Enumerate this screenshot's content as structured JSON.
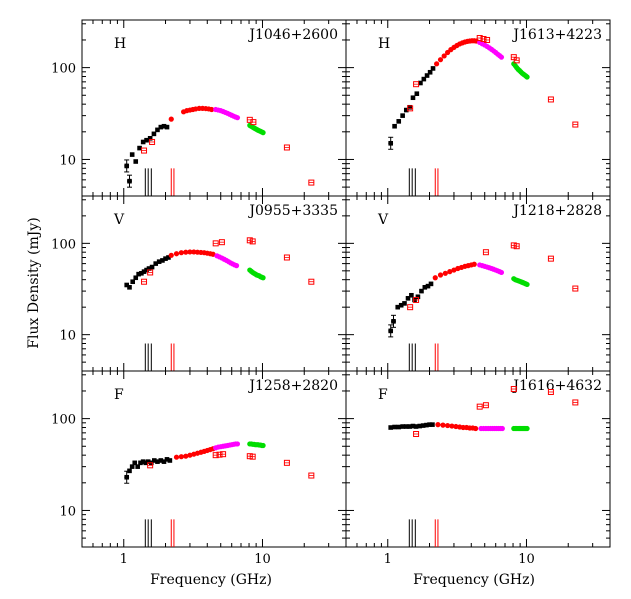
{
  "chart_data": {
    "type": "scatter",
    "xlabel": "Frequency (GHz)",
    "ylabel": "Flux Density (mJy)",
    "x_scale": "log",
    "y_scale": "log",
    "xlim": [
      0.5,
      40
    ],
    "ylim": [
      4,
      330
    ],
    "x_tick_labels": [
      {
        "value": 1,
        "label": "1"
      },
      {
        "value": 10,
        "label": "10"
      }
    ],
    "y_tick_labels": [
      {
        "value": 10,
        "label": "10"
      },
      {
        "value": 100,
        "label": "100"
      }
    ],
    "legend": "none",
    "grid": false,
    "band_markers": {
      "description": "vertical bars near the bottom of each panel",
      "black_group_ghz": [
        1.43,
        1.5,
        1.58
      ],
      "red_group_ghz": [
        2.2,
        2.3
      ],
      "top_mjy": 8
    },
    "series_styles": {
      "black": {
        "color": "#000000",
        "marker": "filled-square"
      },
      "red": {
        "color": "#ff0000",
        "marker": "filled-circle"
      },
      "magenta": {
        "color": "#ff00ff",
        "marker": "filled-circle"
      },
      "green": {
        "color": "#00dd00",
        "marker": "filled-circle"
      },
      "redopen": {
        "color": "#ff0000",
        "marker": "open-square"
      }
    },
    "panels": [
      {
        "source": "J1046+2600",
        "class": "H",
        "series": [
          {
            "name": "black",
            "x": [
              1.05,
              1.1,
              1.15,
              1.22,
              1.3,
              1.38,
              1.46,
              1.55,
              1.65,
              1.75,
              1.85,
              1.95,
              2.05
            ],
            "y": [
              8.5,
              5.8,
              11.3,
              9.5,
              13.3,
              15.5,
              16.2,
              17.0,
              19.0,
              21.0,
              22.5,
              23.0,
              22.5
            ]
          },
          {
            "name": "black_err",
            "x": [
              1.05,
              1.1
            ],
            "y": [
              8.5,
              5.8
            ]
          },
          {
            "name": "red",
            "x": [
              2.2,
              2.7,
              2.85,
              3.0,
              3.15,
              3.3,
              3.5,
              3.7,
              3.9,
              4.1,
              4.3
            ],
            "y": [
              27.5,
              33.0,
              34.0,
              34.5,
              35.0,
              35.5,
              36.0,
              36.0,
              35.8,
              35.5,
              35.0
            ]
          },
          {
            "name": "magenta",
            "x": [
              4.6,
              4.8,
              5.0,
              5.2,
              5.4,
              5.6,
              5.8,
              6.0,
              6.2,
              6.4,
              6.6
            ],
            "y": [
              35.0,
              34.5,
              34.0,
              33.3,
              32.5,
              31.8,
              31.0,
              30.3,
              29.6,
              29.0,
              28.5
            ]
          },
          {
            "name": "green",
            "x": [
              8.1,
              8.3,
              8.5,
              8.7,
              8.9,
              9.1,
              9.3,
              9.5,
              9.7,
              9.9,
              10.1
            ],
            "y": [
              23.5,
              23.0,
              22.5,
              22.0,
              21.6,
              21.2,
              20.8,
              20.5,
              20.2,
              19.9,
              19.6
            ]
          },
          {
            "name": "redopen",
            "x": [
              1.4,
              1.6,
              8.1,
              8.6,
              15.0,
              22.5
            ],
            "y": [
              12.5,
              15.5,
              27.0,
              25.5,
              13.5,
              5.6
            ]
          }
        ]
      },
      {
        "source": "J1613+4223",
        "class": "H",
        "series": [
          {
            "name": "black",
            "x": [
              1.05,
              1.12,
              1.2,
              1.28,
              1.36,
              1.44,
              1.52,
              1.62,
              1.72,
              1.82,
              1.92,
              2.02,
              2.12
            ],
            "y": [
              15.0,
              23.0,
              26.0,
              30.0,
              34.5,
              37.0,
              47.0,
              52.0,
              68.0,
              75.0,
              82.0,
              89.0,
              98.0
            ]
          },
          {
            "name": "black_err",
            "x": [
              1.05
            ],
            "y": [
              15.0
            ]
          },
          {
            "name": "red",
            "x": [
              2.25,
              2.4,
              2.55,
              2.7,
              2.85,
              3.0,
              3.15,
              3.3,
              3.45,
              3.6,
              3.75,
              3.9,
              4.05,
              4.2,
              4.35
            ],
            "y": [
              110,
              122,
              134,
              146,
              157,
              166,
              174,
              181,
              186,
              190,
              193,
              195,
              196,
              196,
              195
            ]
          },
          {
            "name": "magenta",
            "x": [
              4.6,
              4.8,
              5.0,
              5.2,
              5.4,
              5.6,
              5.8,
              6.0,
              6.2,
              6.4,
              6.6
            ],
            "y": [
              188,
              182,
              176,
              170,
              164,
              158,
              152,
              146,
              140,
              135,
              130
            ]
          },
          {
            "name": "green",
            "x": [
              8.1,
              8.3,
              8.5,
              8.7,
              8.9,
              9.1,
              9.3,
              9.5,
              9.7,
              9.9,
              10.1
            ],
            "y": [
              110,
              105,
              100,
              96,
              93,
              90,
              87,
              85,
              83,
              81,
              79
            ]
          },
          {
            "name": "redopen",
            "x": [
              1.45,
              1.6,
              4.6,
              4.9,
              5.2,
              8.1,
              8.5,
              15.0,
              22.5
            ],
            "y": [
              36,
              66,
              210,
              205,
              200,
              130,
              120,
              45,
              24
            ]
          }
        ]
      },
      {
        "source": "J0955+3335",
        "class": "V",
        "series": [
          {
            "name": "black",
            "x": [
              1.05,
              1.1,
              1.16,
              1.22,
              1.28,
              1.34,
              1.4,
              1.46,
              1.52,
              1.6,
              1.7,
              1.8,
              1.9,
              2.0,
              2.1
            ],
            "y": [
              35,
              33,
              38,
              42,
              46,
              47,
              49,
              51,
              53,
              55,
              60,
              63,
              65,
              68,
              70
            ]
          },
          {
            "name": "red",
            "x": [
              2.2,
              2.4,
              2.6,
              2.8,
              3.0,
              3.2,
              3.4,
              3.6,
              3.8,
              4.0,
              4.2,
              4.4
            ],
            "y": [
              74,
              77,
              79,
              80,
              80.5,
              80.5,
              80,
              79.5,
              79,
              78,
              77,
              76
            ]
          },
          {
            "name": "magenta",
            "x": [
              4.7,
              4.9,
              5.1,
              5.3,
              5.5,
              5.7,
              5.9,
              6.1,
              6.3,
              6.5
            ],
            "y": [
              73,
              71,
              69,
              67,
              65,
              63,
              61,
              59.5,
              58,
              57
            ]
          },
          {
            "name": "green",
            "x": [
              8.1,
              8.3,
              8.5,
              8.7,
              8.9,
              9.1,
              9.3,
              9.5,
              9.7,
              9.9,
              10.1
            ],
            "y": [
              51,
              49.5,
              48,
              47,
              46,
              45,
              44.5,
              44,
              43,
              42.5,
              42
            ]
          },
          {
            "name": "redopen",
            "x": [
              1.4,
              1.55,
              4.6,
              5.1,
              8.1,
              8.5,
              15.0,
              22.5
            ],
            "y": [
              38,
              48,
              100,
              103,
              108,
              105,
              70,
              38
            ]
          }
        ]
      },
      {
        "source": "J1218+2828",
        "class": "V",
        "series": [
          {
            "name": "black",
            "x": [
              1.05,
              1.1,
              1.18,
              1.25,
              1.32,
              1.4,
              1.48,
              1.56,
              1.65,
              1.75,
              1.85,
              1.95,
              2.05
            ],
            "y": [
              11,
              14,
              20,
              21,
              22,
              25,
              27,
              24,
              26,
              30,
              33,
              34,
              36
            ]
          },
          {
            "name": "black_err",
            "x": [
              1.05,
              1.1
            ],
            "y": [
              11,
              14
            ]
          },
          {
            "name": "red",
            "x": [
              2.2,
              2.4,
              2.6,
              2.8,
              3.0,
              3.2,
              3.4,
              3.6,
              3.8,
              4.0,
              4.2
            ],
            "y": [
              42,
              45,
              47,
              49,
              51,
              53,
              54.5,
              56,
              57,
              58,
              59
            ]
          },
          {
            "name": "magenta",
            "x": [
              4.6,
              4.8,
              5.0,
              5.2,
              5.4,
              5.6,
              5.8,
              6.0,
              6.2,
              6.4,
              6.6
            ],
            "y": [
              58,
              57,
              56,
              55,
              54,
              53,
              52,
              51,
              50,
              49,
              48
            ]
          },
          {
            "name": "green",
            "x": [
              8.1,
              8.3,
              8.5,
              8.7,
              8.9,
              9.1,
              9.3,
              9.5,
              9.7,
              9.9,
              10.1
            ],
            "y": [
              41,
              40,
              39.5,
              39,
              38.5,
              38,
              37.5,
              37,
              36.5,
              36,
              35.5
            ]
          },
          {
            "name": "redopen",
            "x": [
              1.45,
              1.6,
              5.1,
              8.1,
              8.5,
              15.0,
              22.5
            ],
            "y": [
              20,
              24,
              80,
              95,
              93,
              68,
              32
            ]
          }
        ]
      },
      {
        "source": "J1258+2820",
        "class": "F",
        "series": [
          {
            "name": "black",
            "x": [
              1.05,
              1.1,
              1.15,
              1.2,
              1.26,
              1.32,
              1.38,
              1.44,
              1.5,
              1.58,
              1.66,
              1.75,
              1.85,
              1.95,
              2.05,
              2.15
            ],
            "y": [
              23,
              27,
              30,
              33,
              30,
              33,
              34,
              33,
              34,
              33,
              35,
              34,
              35,
              34,
              36,
              35
            ]
          },
          {
            "name": "black_err",
            "x": [
              1.05
            ],
            "y": [
              23
            ]
          },
          {
            "name": "red",
            "x": [
              2.4,
              2.6,
              2.8,
              3.0,
              3.2,
              3.4,
              3.6,
              3.8,
              4.0,
              4.2,
              4.4
            ],
            "y": [
              38,
              38.5,
              39,
              40,
              41,
              42,
              43,
              44,
              45,
              46,
              47
            ]
          },
          {
            "name": "magenta",
            "x": [
              4.6,
              4.8,
              5.0,
              5.2,
              5.4,
              5.6,
              5.8,
              6.0,
              6.2,
              6.4,
              6.6
            ],
            "y": [
              48,
              49,
              49.5,
              50,
              50.5,
              51,
              51.5,
              52,
              52.5,
              53,
              53
            ]
          },
          {
            "name": "green",
            "x": [
              8.1,
              8.3,
              8.5,
              8.7,
              8.9,
              9.1,
              9.3,
              9.5,
              9.7,
              9.9,
              10.1
            ],
            "y": [
              53,
              53,
              52.5,
              52.5,
              52,
              52,
              52,
              51.5,
              51.5,
              51,
              51
            ]
          },
          {
            "name": "redopen",
            "x": [
              1.55,
              4.6,
              4.9,
              5.2,
              8.1,
              8.5,
              15.0,
              22.5
            ],
            "y": [
              31,
              40,
              40.5,
              41,
              39,
              38.5,
              33,
              24
            ]
          }
        ]
      },
      {
        "source": "J1616+4632",
        "class": "F",
        "series": [
          {
            "name": "black",
            "x": [
              1.05,
              1.12,
              1.2,
              1.28,
              1.36,
              1.44,
              1.52,
              1.6,
              1.7,
              1.8,
              1.9,
              2.0,
              2.1
            ],
            "y": [
              80,
              81,
              81,
              82,
              82,
              82,
              83,
              82,
              83,
              84,
              85,
              86,
              86
            ]
          },
          {
            "name": "red",
            "x": [
              2.3,
              2.5,
              2.7,
              2.9,
              3.1,
              3.3,
              3.5,
              3.7,
              3.9,
              4.1,
              4.3
            ],
            "y": [
              86,
              85,
              84,
              83,
              82,
              81,
              80,
              80,
              79,
              79,
              78
            ]
          },
          {
            "name": "magenta",
            "x": [
              4.7,
              4.9,
              5.1,
              5.3,
              5.5,
              5.7,
              5.9,
              6.1,
              6.3,
              6.5,
              6.7
            ],
            "y": [
              78,
              78,
              78,
              78,
              78,
              78,
              78,
              78,
              78,
              78,
              78
            ]
          },
          {
            "name": "green",
            "x": [
              8.1,
              8.3,
              8.5,
              8.7,
              8.9,
              9.1,
              9.3,
              9.5,
              9.7,
              9.9,
              10.1
            ],
            "y": [
              78,
              78,
              78,
              78,
              78,
              78,
              78,
              78,
              78,
              78,
              78
            ]
          },
          {
            "name": "redopen",
            "x": [
              1.6,
              4.6,
              5.1,
              8.1,
              15.0,
              22.5
            ],
            "y": [
              68,
              135,
              140,
              210,
              195,
              150
            ]
          }
        ]
      }
    ]
  }
}
